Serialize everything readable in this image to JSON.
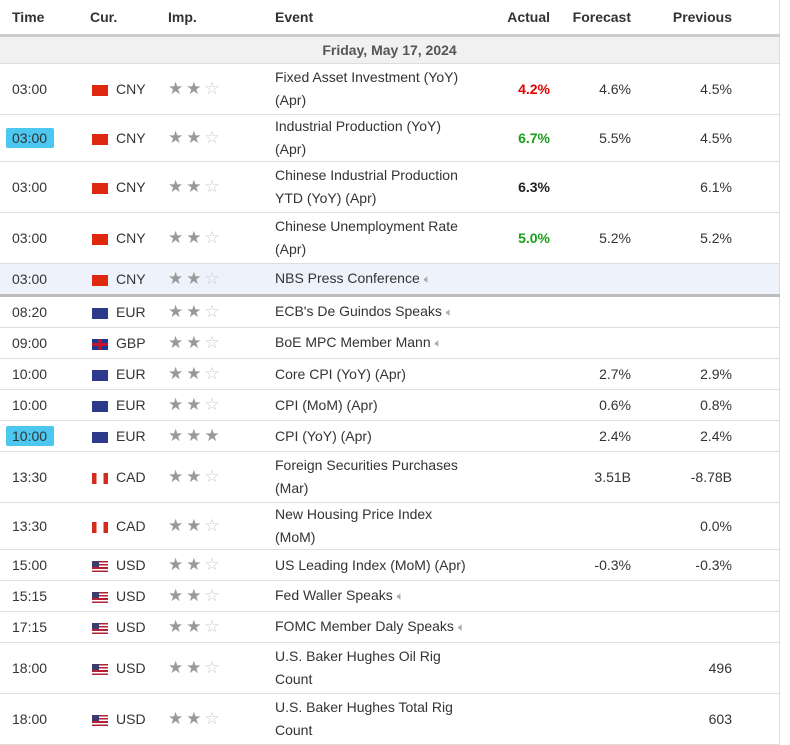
{
  "headers": {
    "time": "Time",
    "cur": "Cur.",
    "imp": "Imp.",
    "event": "Event",
    "actual": "Actual",
    "forecast": "Forecast",
    "previous": "Previous"
  },
  "date": "Friday, May 17, 2024",
  "rows": [
    {
      "time": "03:00",
      "cur": "CNY",
      "stars": 2,
      "event": "Fixed Asset Investment (YoY) (Apr)",
      "actual": "4.2%",
      "actual_color": "red",
      "forecast": "4.6%",
      "previous": "4.5%"
    },
    {
      "time": "03:00",
      "cur": "CNY",
      "stars": 2,
      "event": "Industrial Production (YoY) (Apr)",
      "actual": "6.7%",
      "actual_color": "green",
      "forecast": "5.5%",
      "previous": "4.5%",
      "marked": true
    },
    {
      "time": "03:00",
      "cur": "CNY",
      "stars": 2,
      "event": "Chinese Industrial Production YTD (YoY) (Apr)",
      "actual": "6.3%",
      "actual_color": "black",
      "forecast": "",
      "previous": "6.1%"
    },
    {
      "time": "03:00",
      "cur": "CNY",
      "stars": 2,
      "event": "Chinese Unemployment Rate (Apr)",
      "actual": "5.0%",
      "actual_color": "green",
      "forecast": "5.2%",
      "previous": "5.2%"
    },
    {
      "time": "03:00",
      "cur": "CNY",
      "stars": 2,
      "event": "NBS Press Conference",
      "speech": true,
      "actual": "",
      "forecast": "",
      "previous": "",
      "highlight": true
    },
    {
      "time": "08:20",
      "cur": "EUR",
      "stars": 2,
      "event": "ECB's De Guindos Speaks",
      "speech": true,
      "actual": "",
      "forecast": "",
      "previous": ""
    },
    {
      "time": "09:00",
      "cur": "GBP",
      "stars": 2,
      "event": "BoE MPC Member Mann",
      "speech": true,
      "actual": "",
      "forecast": "",
      "previous": ""
    },
    {
      "time": "10:00",
      "cur": "EUR",
      "stars": 2,
      "event": "Core CPI (YoY) (Apr)",
      "actual": "",
      "forecast": "2.7%",
      "previous": "2.9%"
    },
    {
      "time": "10:00",
      "cur": "EUR",
      "stars": 2,
      "event": "CPI (MoM) (Apr)",
      "actual": "",
      "forecast": "0.6%",
      "previous": "0.8%"
    },
    {
      "time": "10:00",
      "cur": "EUR",
      "stars": 3,
      "event": "CPI (YoY) (Apr)",
      "actual": "",
      "forecast": "2.4%",
      "previous": "2.4%",
      "marked": true
    },
    {
      "time": "13:30",
      "cur": "CAD",
      "stars": 2,
      "event": "Foreign Securities Purchases (Mar)",
      "actual": "",
      "forecast": "3.51B",
      "previous": "-8.78B"
    },
    {
      "time": "13:30",
      "cur": "CAD",
      "stars": 2,
      "event": "New Housing Price Index (MoM)",
      "actual": "",
      "forecast": "",
      "previous": "0.0%"
    },
    {
      "time": "15:00",
      "cur": "USD",
      "stars": 2,
      "event": "US Leading Index (MoM) (Apr)",
      "actual": "",
      "forecast": "-0.3%",
      "previous": "-0.3%"
    },
    {
      "time": "15:15",
      "cur": "USD",
      "stars": 2,
      "event": "Fed Waller Speaks",
      "speech": true,
      "actual": "",
      "forecast": "",
      "previous": ""
    },
    {
      "time": "17:15",
      "cur": "USD",
      "stars": 2,
      "event": "FOMC Member Daly Speaks",
      "speech": true,
      "actual": "",
      "forecast": "",
      "previous": ""
    },
    {
      "time": "18:00",
      "cur": "USD",
      "stars": 2,
      "event": "U.S. Baker Hughes Oil Rig Count",
      "actual": "",
      "forecast": "",
      "previous": "496"
    },
    {
      "time": "18:00",
      "cur": "USD",
      "stars": 2,
      "event": "U.S. Baker Hughes Total Rig Count",
      "actual": "",
      "forecast": "",
      "previous": "603"
    }
  ],
  "tall_rows": [
    0,
    2,
    3,
    10,
    15,
    16
  ]
}
